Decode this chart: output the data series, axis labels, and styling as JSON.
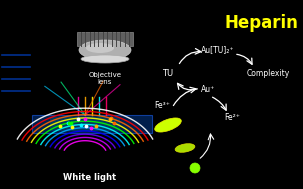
{
  "bg_color": "#000000",
  "title_text": "Heparin",
  "title_color": "#FFFF00",
  "title_fontsize": 12,
  "white_light_text": "White light",
  "objective_lens_text": "Objective\nlens",
  "tu_text": "TU",
  "au_tu_text": "Au[TU]₂⁺",
  "au_plus_text": "Au⁺",
  "complexity_text": "Complexity",
  "fe3_text": "Fe³⁺",
  "fe2_text": "Fe²⁺",
  "rainbow_colors": [
    "#ff00ff",
    "#cc00ff",
    "#6600ff",
    "#0000ff",
    "#00aaff",
    "#00ffff",
    "#00ff00",
    "#ffff00",
    "#ff6600",
    "#ff0000",
    "#ffffff"
  ],
  "nanorod_large_color": "#ccff00",
  "nanorod_small_color": "#aadd00",
  "green_dot_color": "#88ff00"
}
